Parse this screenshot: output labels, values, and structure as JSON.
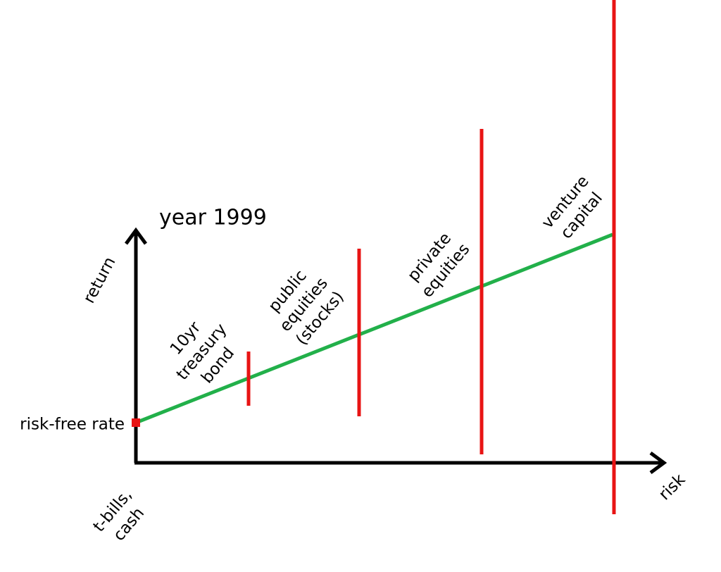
{
  "title": "year 1999",
  "y_axis_label": "return",
  "x_axis_label": "risk",
  "risk_free_label": "risk-free rate",
  "origin_label": {
    "lines": [
      "t-bills,",
      "cash"
    ]
  },
  "assets": [
    {
      "lines": [
        "10yr",
        "treasury",
        "bond"
      ]
    },
    {
      "lines": [
        "public",
        "equities",
        "(stocks)"
      ]
    },
    {
      "lines": [
        "private",
        "equities"
      ]
    },
    {
      "lines": [
        "venture",
        "capital"
      ]
    }
  ]
}
